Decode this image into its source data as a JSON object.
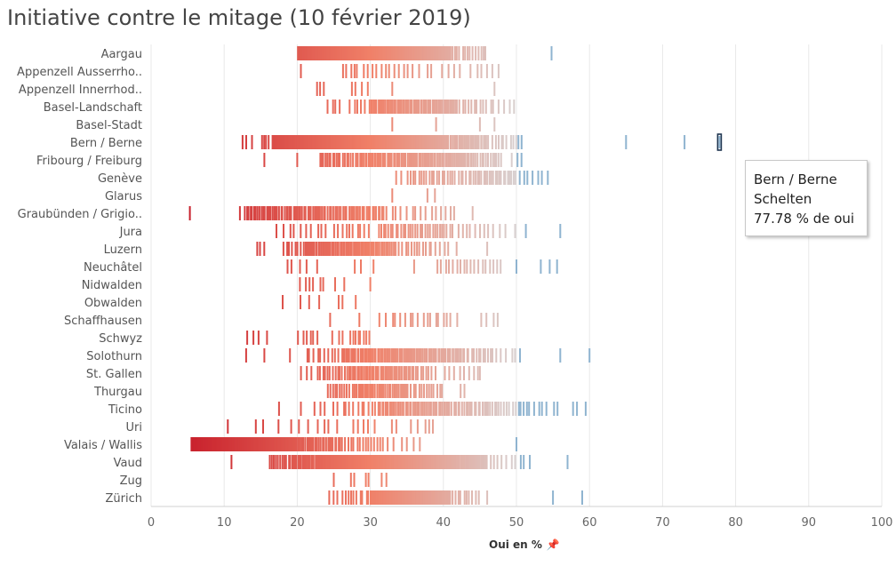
{
  "title": "Initiative contre le mitage (10 février 2019)",
  "tooltip": {
    "canton": "Bern / Berne",
    "commune": "Schelten",
    "value_text": "77.78 % de oui"
  },
  "colors": {
    "low": "#c8202c",
    "mid": "#f08068",
    "near50": "#d8d0d0",
    "high": "#8fb4d0",
    "highlight": "#1f3550",
    "grid": "#e8e8e8"
  },
  "chart_data": {
    "type": "strip",
    "title": "Initiative contre le mitage (10 février 2019)",
    "xlabel": "Oui en %",
    "xlim": [
      0,
      100
    ],
    "xticks": [
      0,
      10,
      20,
      30,
      40,
      50,
      60,
      70,
      80,
      90,
      100
    ],
    "grid": true,
    "highlight": {
      "canton": "Bern / Berne",
      "commune": "Schelten",
      "value": 77.78
    },
    "categories": [
      "Aargau",
      "Appenzell Ausserrho..",
      "Appenzell Innerrhod..",
      "Basel-Landschaft",
      "Basel-Stadt",
      "Bern / Berne",
      "Fribourg / Freiburg",
      "Genève",
      "Glarus",
      "Graubünden / Grigio..",
      "Jura",
      "Luzern",
      "Neuchâtel",
      "Nidwalden",
      "Obwalden",
      "Schaffhausen",
      "Schwyz",
      "Solothurn",
      "St. Gallen",
      "Thurgau",
      "Ticino",
      "Uri",
      "Valais / Wallis",
      "Vaud",
      "Zug",
      "Zürich"
    ],
    "ranges": [
      [
        [
          20,
          22,
          14
        ],
        [
          22,
          26,
          30
        ],
        [
          26,
          41,
          150
        ],
        [
          41,
          46,
          14
        ],
        [
          54.8,
          54.8,
          1
        ]
      ],
      [
        [
          20.5,
          20.5,
          1
        ],
        [
          26,
          28,
          4
        ],
        [
          28,
          33,
          8
        ],
        [
          33,
          37,
          6
        ],
        [
          37,
          44,
          7
        ],
        [
          44,
          48,
          5
        ]
      ],
      [
        [
          22.5,
          24,
          3
        ],
        [
          27,
          30,
          4
        ],
        [
          33,
          34,
          1
        ],
        [
          47,
          47,
          1
        ]
      ],
      [
        [
          24,
          26,
          4
        ],
        [
          27,
          30,
          6
        ],
        [
          30,
          42,
          60
        ],
        [
          42,
          46,
          10
        ],
        [
          46,
          50,
          6
        ]
      ],
      [
        [
          33,
          33,
          1
        ],
        [
          39,
          39,
          1
        ],
        [
          45,
          46,
          1
        ],
        [
          47,
          48,
          1
        ]
      ],
      [
        [
          12,
          14,
          3
        ],
        [
          15,
          17,
          6
        ],
        [
          17,
          22,
          40
        ],
        [
          22,
          40,
          250
        ],
        [
          40,
          46,
          30
        ],
        [
          46,
          51,
          12
        ],
        [
          65,
          65,
          1
        ],
        [
          73,
          73,
          1
        ]
      ],
      [
        [
          15.5,
          15.5,
          1
        ],
        [
          20,
          20,
          1
        ],
        [
          23,
          26,
          12
        ],
        [
          26,
          29,
          10
        ],
        [
          29,
          44,
          70
        ],
        [
          44,
          48,
          14
        ],
        [
          49,
          51,
          3
        ]
      ],
      [
        [
          33,
          35,
          2
        ],
        [
          35,
          44,
          25
        ],
        [
          44,
          50,
          22
        ],
        [
          50,
          54,
          6
        ],
        [
          54.3,
          54.3,
          1
        ]
      ],
      [
        [
          33,
          33,
          1
        ],
        [
          37.5,
          39,
          2
        ]
      ],
      [
        [
          5.3,
          5.3,
          1
        ],
        [
          12,
          13,
          2
        ],
        [
          13,
          24,
          45
        ],
        [
          24,
          32,
          30
        ],
        [
          32,
          40,
          12
        ],
        [
          40,
          42,
          3
        ],
        [
          44,
          44,
          1
        ]
      ],
      [
        [
          17,
          20,
          4
        ],
        [
          20,
          26,
          8
        ],
        [
          26,
          30,
          8
        ],
        [
          31,
          41,
          30
        ],
        [
          41,
          47,
          10
        ],
        [
          47,
          52,
          4
        ],
        [
          56,
          56,
          1
        ]
      ],
      [
        [
          14,
          16,
          3
        ],
        [
          18,
          21,
          8
        ],
        [
          21,
          33,
          60
        ],
        [
          33,
          39,
          15
        ],
        [
          39,
          42,
          4
        ],
        [
          46,
          46,
          1
        ]
      ],
      [
        [
          18,
          20,
          2
        ],
        [
          20,
          23,
          3
        ],
        [
          27,
          31,
          3
        ],
        [
          36,
          37,
          1
        ],
        [
          39,
          44,
          10
        ],
        [
          44,
          48,
          8
        ],
        [
          50,
          51,
          1
        ],
        [
          53,
          56,
          3
        ]
      ],
      [
        [
          20,
          24,
          6
        ],
        [
          25,
          27,
          2
        ],
        [
          30,
          30,
          1
        ]
      ],
      [
        [
          18,
          18,
          1
        ],
        [
          20,
          22,
          2
        ],
        [
          23,
          23,
          1
        ],
        [
          25,
          27,
          2
        ],
        [
          28,
          28,
          1
        ]
      ],
      [
        [
          24.5,
          24.5,
          1
        ],
        [
          28.5,
          28.5,
          1
        ],
        [
          31,
          34,
          4
        ],
        [
          34,
          42,
          14
        ],
        [
          45,
          48,
          4
        ]
      ],
      [
        [
          13,
          16,
          4
        ],
        [
          20,
          23,
          6
        ],
        [
          24,
          27,
          3
        ],
        [
          27,
          30,
          8
        ]
      ],
      [
        [
          13,
          13,
          1
        ],
        [
          15.5,
          15.5,
          1
        ],
        [
          19,
          19,
          1
        ],
        [
          21,
          26,
          10
        ],
        [
          26,
          43,
          80
        ],
        [
          43,
          47,
          12
        ],
        [
          47,
          51,
          6
        ],
        [
          56,
          56,
          1
        ],
        [
          60,
          60,
          1
        ]
      ],
      [
        [
          20,
          23,
          4
        ],
        [
          23,
          27,
          12
        ],
        [
          27,
          36,
          40
        ],
        [
          36,
          39,
          8
        ],
        [
          40,
          45,
          8
        ],
        [
          45,
          46,
          1
        ]
      ],
      [
        [
          24,
          28,
          12
        ],
        [
          28,
          35,
          30
        ],
        [
          35,
          40,
          14
        ],
        [
          42,
          43,
          2
        ]
      ],
      [
        [
          17.5,
          17.5,
          1
        ],
        [
          20.5,
          20.5,
          1
        ],
        [
          22,
          26,
          5
        ],
        [
          26,
          31,
          10
        ],
        [
          31,
          41,
          40
        ],
        [
          41,
          48,
          25
        ],
        [
          48,
          52,
          10
        ],
        [
          52,
          56,
          6
        ],
        [
          57,
          60,
          3
        ]
      ],
      [
        [
          10.5,
          10.5,
          1
        ],
        [
          14,
          16,
          2
        ],
        [
          17,
          21,
          3
        ],
        [
          21,
          26,
          5
        ],
        [
          27,
          31,
          5
        ],
        [
          32,
          37,
          4
        ],
        [
          37,
          39,
          3
        ]
      ],
      [
        [
          5.5,
          10,
          50
        ],
        [
          10,
          20,
          90
        ],
        [
          20,
          26,
          25
        ],
        [
          26,
          32,
          15
        ],
        [
          32,
          37,
          6
        ],
        [
          50,
          50,
          1
        ]
      ],
      [
        [
          11,
          11,
          1
        ],
        [
          16,
          19,
          10
        ],
        [
          19,
          23,
          20
        ],
        [
          23,
          40,
          200
        ],
        [
          40,
          46,
          40
        ],
        [
          46,
          52,
          10
        ],
        [
          57,
          57,
          1
        ]
      ],
      [
        [
          25,
          25,
          1
        ],
        [
          27,
          28,
          2
        ],
        [
          29,
          30,
          2
        ],
        [
          31,
          33,
          2
        ]
      ],
      [
        [
          24,
          26,
          3
        ],
        [
          26,
          30,
          10
        ],
        [
          30,
          41,
          90
        ],
        [
          41,
          45,
          10
        ],
        [
          46,
          47,
          1
        ],
        [
          55,
          55,
          1
        ],
        [
          59,
          59,
          1
        ]
      ]
    ]
  },
  "axis_title_pin": "pin-icon"
}
